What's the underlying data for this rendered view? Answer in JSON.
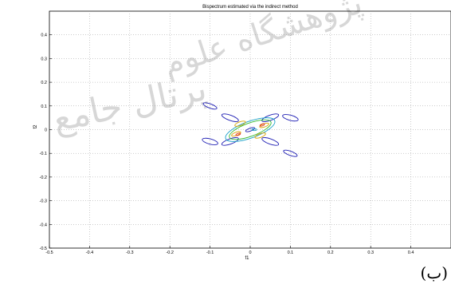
{
  "chart_data": {
    "type": "contour",
    "title": "Bispectrum estimated via the indirect method",
    "xlabel": "f1",
    "ylabel": "f2",
    "xlim": [
      -0.5,
      0.5
    ],
    "ylim": [
      -0.5,
      0.5
    ],
    "xticks": [
      -0.5,
      -0.4,
      -0.3,
      -0.2,
      -0.1,
      0,
      0.1,
      0.2,
      0.3,
      0.4
    ],
    "yticks": [
      -0.5,
      -0.4,
      -0.3,
      -0.2,
      -0.1,
      0,
      0.1,
      0.2,
      0.3,
      0.4
    ],
    "xtick_labels": [
      "-0.5",
      "-0.4",
      "-0.3",
      "-0.2",
      "-0.1",
      "0",
      "0.1",
      "0.2",
      "0.3",
      "0.4"
    ],
    "ytick_labels": [
      "-0.5",
      "-0.4",
      "-0.3",
      "-0.2",
      "-0.1",
      "0",
      "0.1",
      "0.2",
      "0.3",
      "0.4"
    ],
    "grid": true,
    "contours": [
      {
        "level": "low",
        "color": "#1f1fb4",
        "cx": -0.05,
        "cy": 0.05,
        "rx": 0.022,
        "ry": 0.011,
        "angle": 20
      },
      {
        "level": "low",
        "color": "#1f1fb4",
        "cx": 0.05,
        "cy": 0.05,
        "rx": 0.022,
        "ry": 0.011,
        "angle": -20
      },
      {
        "level": "low",
        "color": "#1f1fb4",
        "cx": -0.05,
        "cy": -0.05,
        "rx": 0.022,
        "ry": 0.011,
        "angle": -20
      },
      {
        "level": "low",
        "color": "#1f1fb4",
        "cx": 0.05,
        "cy": -0.05,
        "rx": 0.022,
        "ry": 0.011,
        "angle": 20
      },
      {
        "level": "low",
        "color": "#1f1fb4",
        "cx": -0.1,
        "cy": 0.1,
        "rx": 0.018,
        "ry": 0.009,
        "angle": 20
      },
      {
        "level": "low",
        "color": "#1f1fb4",
        "cx": 0.1,
        "cy": -0.1,
        "rx": 0.018,
        "ry": 0.009,
        "angle": 20
      },
      {
        "level": "low",
        "color": "#1f1fb4",
        "cx": -0.1,
        "cy": -0.05,
        "rx": 0.02,
        "ry": 0.011,
        "angle": 15
      },
      {
        "level": "low",
        "color": "#1f1fb4",
        "cx": 0.1,
        "cy": 0.05,
        "rx": 0.02,
        "ry": 0.011,
        "angle": 15
      },
      {
        "level": "mid",
        "color": "#1aa0c8",
        "cx": 0,
        "cy": 0,
        "rx": 0.065,
        "ry": 0.035,
        "angle": -20
      },
      {
        "level": "mid",
        "color": "#2eb82e",
        "cx": 0,
        "cy": 0,
        "rx": 0.055,
        "ry": 0.028,
        "angle": -20
      },
      {
        "level": "high",
        "color": "#d9a400",
        "cx": -0.025,
        "cy": 0.025,
        "rx": 0.014,
        "ry": 0.008,
        "angle": -20
      },
      {
        "level": "high",
        "color": "#d9a400",
        "cx": 0.025,
        "cy": -0.025,
        "rx": 0.014,
        "ry": 0.008,
        "angle": -20
      },
      {
        "level": "high",
        "color": "#d9a400",
        "cx": 0.035,
        "cy": 0.018,
        "rx": 0.012,
        "ry": 0.007,
        "angle": -20
      },
      {
        "level": "high",
        "color": "#d9a400",
        "cx": -0.035,
        "cy": -0.018,
        "rx": 0.012,
        "ry": 0.007,
        "angle": -20
      },
      {
        "level": "peak",
        "color": "#e03020",
        "cx": 0.03,
        "cy": 0.02,
        "rx": 0.006,
        "ry": 0.004,
        "angle": -20
      },
      {
        "level": "peak",
        "color": "#e03020",
        "cx": -0.03,
        "cy": -0.02,
        "rx": 0.006,
        "ry": 0.004,
        "angle": -20
      },
      {
        "level": "center",
        "color": "#1f1fb4",
        "cx": 0,
        "cy": 0,
        "rx": 0.012,
        "ry": 0.006,
        "angle": -20
      },
      {
        "level": "center",
        "color": "#1aa0c8",
        "cx": 0.01,
        "cy": 0,
        "rx": 0.006,
        "ry": 0.004,
        "angle": 0
      }
    ]
  },
  "caption": "(ب)"
}
